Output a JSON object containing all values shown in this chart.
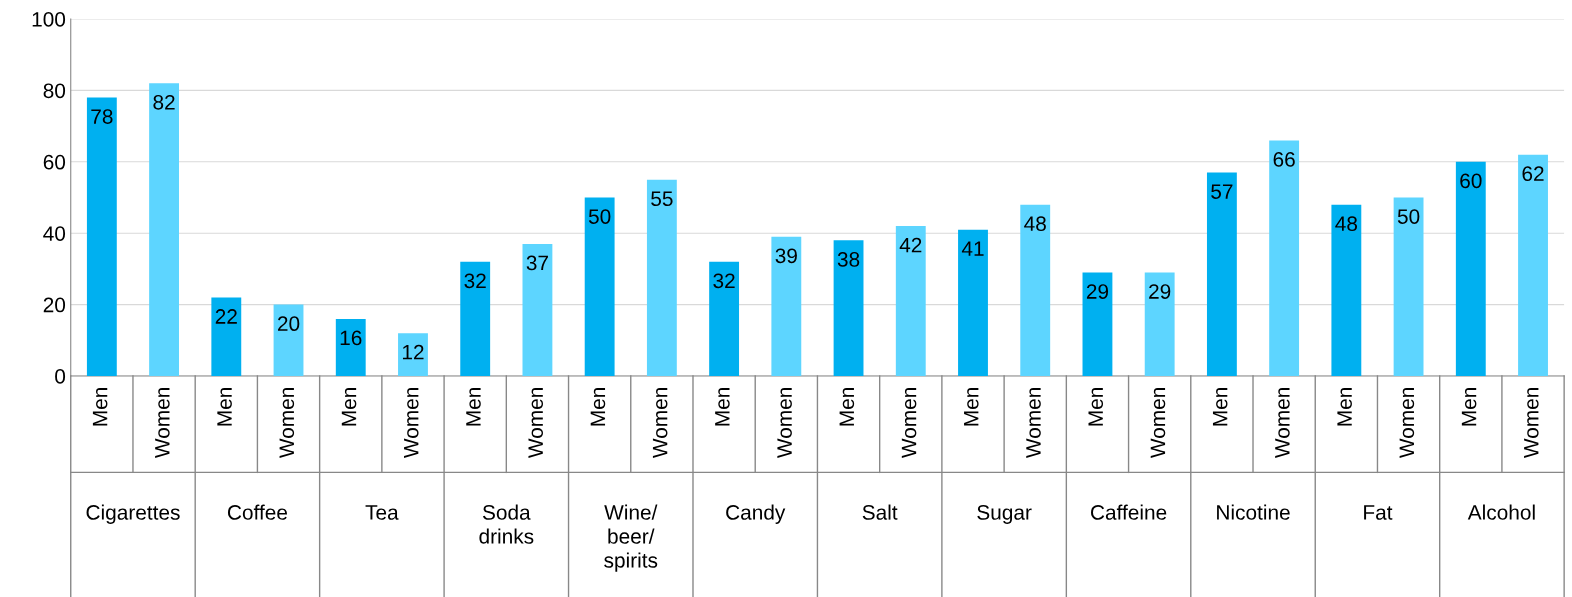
{
  "chart_data": {
    "type": "bar",
    "categories": [
      "Cigarettes",
      "Coffee",
      "Tea",
      "Soda\ndrinks",
      "Wine/\nbeer/\nspirits",
      "Candy",
      "Salt",
      "Sugar",
      "Caffeine",
      "Nicotine",
      "Fat",
      "Alcohol"
    ],
    "series": [
      {
        "name": "Men",
        "color": "#00b0f0",
        "values": [
          78,
          22,
          16,
          32,
          50,
          32,
          38,
          41,
          29,
          57,
          48,
          60
        ]
      },
      {
        "name": "Women",
        "color": "#5dd5ff",
        "values": [
          82,
          20,
          12,
          37,
          55,
          39,
          42,
          48,
          29,
          66,
          50,
          62
        ]
      }
    ],
    "ylim": [
      0,
      100
    ],
    "yticks": [
      0,
      20,
      40,
      60,
      80,
      100
    ],
    "grid": "y",
    "data_labels": true,
    "legend": false
  }
}
